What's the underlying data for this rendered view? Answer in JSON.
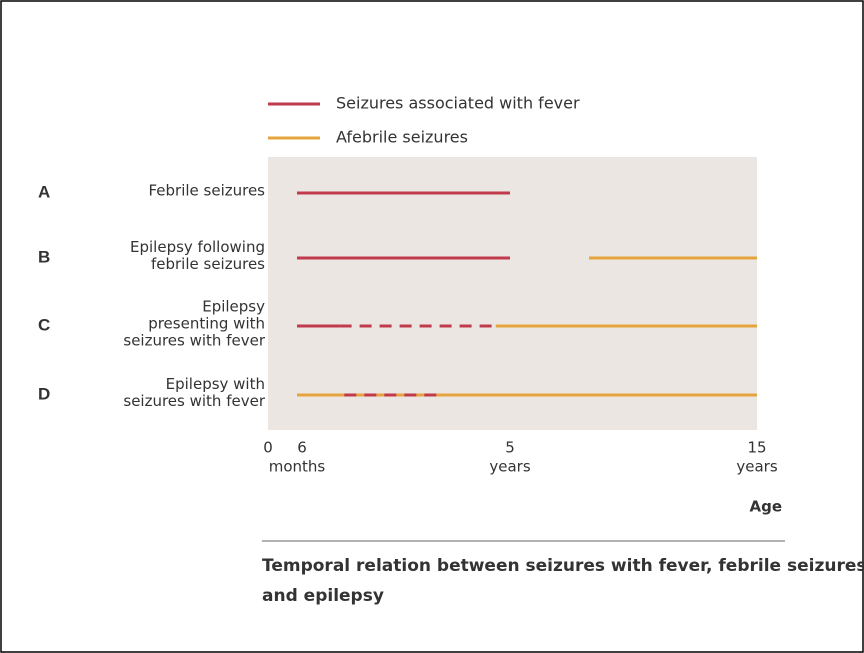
{
  "chart_data": {
    "type": "timeline",
    "legend": {
      "fever": {
        "name": "Seizures associated with fever",
        "color": "#c13a4c"
      },
      "afebrile": {
        "name": "Afebrile seizures",
        "color": "#e6a43f"
      }
    },
    "rows": [
      {
        "letter": "A",
        "label": [
          "Febrile seizures"
        ],
        "segments": [
          {
            "kind": "fever",
            "style": "solid",
            "start": 0.5,
            "end": 5
          }
        ]
      },
      {
        "letter": "B",
        "label": [
          "Epilepsy following",
          "febrile seizures"
        ],
        "segments": [
          {
            "kind": "fever",
            "style": "solid",
            "start": 0.5,
            "end": 5
          },
          {
            "kind": "afebrile",
            "style": "solid",
            "start": 8.2,
            "end": 15
          }
        ]
      },
      {
        "letter": "C",
        "label": [
          "Epilepsy",
          "presenting with",
          "seizures with fever"
        ],
        "segments": [
          {
            "kind": "fever",
            "style": "solid",
            "start": 0.5,
            "end": 1.4
          },
          {
            "kind": "fever",
            "style": "dashed",
            "start": 1.4,
            "end": 4.7
          },
          {
            "kind": "afebrile",
            "style": "solid",
            "start": 4.7,
            "end": 15
          }
        ]
      },
      {
        "letter": "D",
        "label": [
          "Epilepsy with",
          "seizures with fever"
        ],
        "segments": [
          {
            "kind": "afebrile",
            "style": "solid",
            "start": 0.5,
            "end": 15
          },
          {
            "kind": "fever",
            "style": "dashed",
            "start": 1.5,
            "end": 3.6
          }
        ]
      }
    ],
    "xticks": [
      {
        "value": 0,
        "label": [
          "0"
        ]
      },
      {
        "value": 0.5,
        "label": [
          "6",
          "months"
        ]
      },
      {
        "value": 5,
        "label": [
          "5",
          "years"
        ]
      },
      {
        "value": 15,
        "label": [
          "15",
          "years"
        ]
      }
    ],
    "x_label": "Age",
    "caption": [
      "Temporal relation between seizures with fever, febrile seizures,",
      "and epilepsy"
    ]
  }
}
